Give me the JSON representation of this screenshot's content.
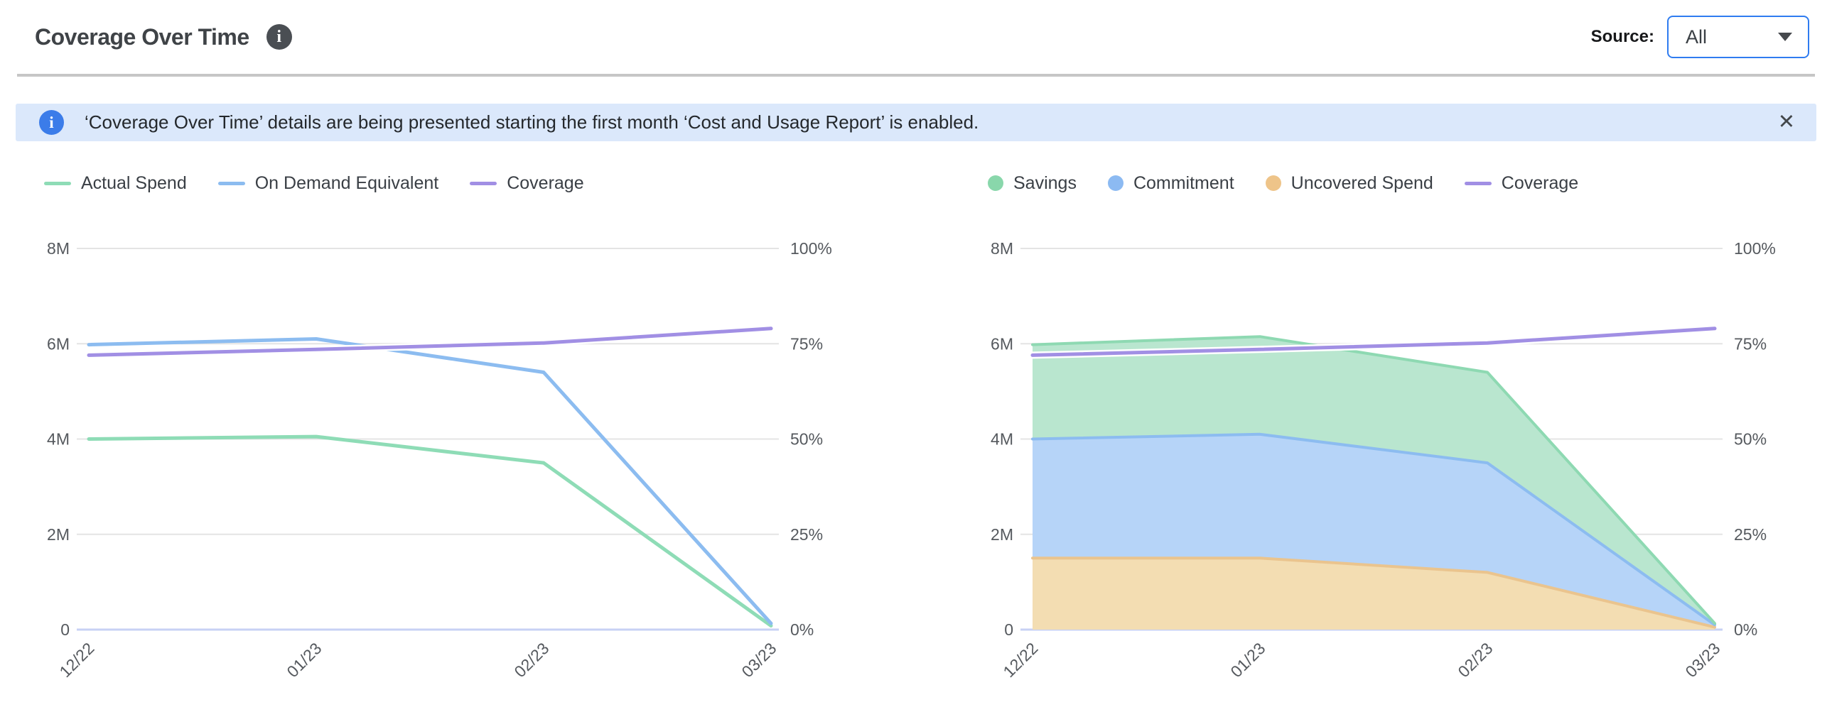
{
  "header": {
    "title": "Coverage Over Time",
    "info_icon": "i",
    "source_label": "Source:",
    "source_value": "All"
  },
  "banner": {
    "icon": "i",
    "text": "‘Coverage Over Time’ details are being presented starting the first month ‘Cost and Usage Report’ is enabled.",
    "close_icon": "✕"
  },
  "colors": {
    "accent_blue": "#2f7cf0",
    "banner_bg": "#dbe8fb",
    "banner_icon_blue": "#3b7ce9",
    "grid": "#e4e4e4",
    "baseline": "#c7d1f4",
    "axis_text": "#55595e",
    "green_line": "#8edcb6",
    "blue_line": "#8cbcf0",
    "purple_line": "#a18fe4",
    "tan": "#eec489",
    "area_green_fill": "#b9e6cf",
    "area_blue_fill": "#b6d4f8",
    "area_tan_fill": "#f3ddb2"
  },
  "chart_data": [
    {
      "type": "line",
      "categories": [
        "12/22",
        "01/23",
        "02/23",
        "03/23"
      ],
      "series": [
        {
          "name": "Actual Spend",
          "type": "line",
          "axis": "left",
          "color": "#8edcb6",
          "values": [
            4.0,
            4.05,
            3.5,
            0.08
          ]
        },
        {
          "name": "On Demand Equivalent",
          "type": "line",
          "axis": "left",
          "color": "#8cbcf0",
          "values": [
            5.98,
            6.1,
            5.4,
            0.13
          ]
        },
        {
          "name": "Coverage",
          "type": "line",
          "axis": "right",
          "color": "#a18fe4",
          "halo": true,
          "values": [
            72,
            73.5,
            75.2,
            79
          ]
        }
      ],
      "legend": [
        {
          "label": "Actual Spend",
          "swatch": "line",
          "color": "#8edcb6"
        },
        {
          "label": "On Demand Equivalent",
          "swatch": "line",
          "color": "#8cbcf0"
        },
        {
          "label": "Coverage",
          "swatch": "line",
          "color": "#a18fe4"
        }
      ],
      "left_axis": {
        "min": 0,
        "max": 8,
        "unit": "M",
        "ticks": [
          "8M",
          "6M",
          "4M",
          "2M",
          "0"
        ]
      },
      "right_axis": {
        "min": 0,
        "max": 100,
        "unit": "%",
        "ticks": [
          "100%",
          "75%",
          "50%",
          "25%",
          "0%"
        ]
      },
      "grid": true,
      "legend_position": "top-left"
    },
    {
      "type": "area",
      "stacked": true,
      "categories": [
        "12/22",
        "01/23",
        "02/23",
        "03/23"
      ],
      "series": [
        {
          "name": "Uncovered Spend",
          "type": "area",
          "axis": "left",
          "fill": "#f3ddb2",
          "edge": "#eac48e",
          "values": [
            1.5,
            1.5,
            1.2,
            0.05
          ]
        },
        {
          "name": "Commitment",
          "type": "area",
          "axis": "left",
          "fill": "#b6d4f8",
          "edge": "#8cbcf0",
          "values": [
            2.5,
            2.6,
            2.3,
            0.05
          ]
        },
        {
          "name": "Savings",
          "type": "area",
          "axis": "left",
          "fill": "#b9e6cf",
          "edge": "#8ed9b2",
          "values": [
            1.98,
            2.05,
            1.9,
            0.03
          ]
        },
        {
          "name": "Coverage",
          "type": "line",
          "axis": "right",
          "color": "#a18fe4",
          "halo": true,
          "values": [
            72,
            73.5,
            75.2,
            79
          ]
        }
      ],
      "legend": [
        {
          "label": "Savings",
          "swatch": "dot",
          "color": "#89d7ab"
        },
        {
          "label": "Commitment",
          "swatch": "dot",
          "color": "#8cbaf2"
        },
        {
          "label": "Uncovered Spend",
          "swatch": "dot",
          "color": "#eec489"
        },
        {
          "label": "Coverage",
          "swatch": "line",
          "color": "#a18fe4"
        }
      ],
      "left_axis": {
        "min": 0,
        "max": 8,
        "unit": "M",
        "ticks": [
          "8M",
          "6M",
          "4M",
          "2M",
          "0"
        ]
      },
      "right_axis": {
        "min": 0,
        "max": 100,
        "unit": "%",
        "ticks": [
          "100%",
          "75%",
          "50%",
          "25%",
          "0%"
        ]
      },
      "grid": true,
      "legend_position": "top-left"
    }
  ]
}
